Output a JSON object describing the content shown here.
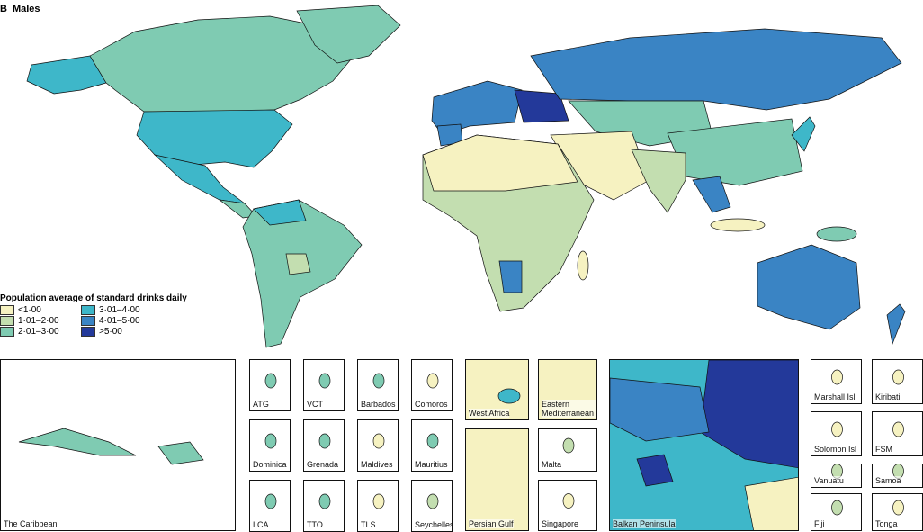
{
  "header": {
    "label": "B",
    "title": "Males"
  },
  "legend": {
    "title": "Population average of standard drinks daily",
    "items": [
      {
        "label": "<1·00",
        "color": "#f6f2c1"
      },
      {
        "label": "1·01–2·00",
        "color": "#c3deb0"
      },
      {
        "label": "2·01–3·00",
        "color": "#7fcbb2"
      },
      {
        "label": "3·01–4·00",
        "color": "#3eb7c9"
      },
      {
        "label": "4·01–5·00",
        "color": "#3a84c4"
      },
      {
        "label": ">5·00",
        "color": "#23399a"
      }
    ]
  },
  "insets": [
    {
      "label": "The Caribbean"
    },
    {
      "label": "ATG"
    },
    {
      "label": "VCT"
    },
    {
      "label": "Barbados"
    },
    {
      "label": "Comoros"
    },
    {
      "label": "Dominica"
    },
    {
      "label": "Grenada"
    },
    {
      "label": "Maldives"
    },
    {
      "label": "Mauritius"
    },
    {
      "label": "LCA"
    },
    {
      "label": "TTO"
    },
    {
      "label": "TLS"
    },
    {
      "label": "Seychelles"
    },
    {
      "label": "West Africa"
    },
    {
      "label": "Eastern Mediterranean"
    },
    {
      "label": "Persian Gulf"
    },
    {
      "label": "Malta"
    },
    {
      "label": "Singapore"
    },
    {
      "label": "Balkan Peninsula"
    },
    {
      "label": "Marshall Isl"
    },
    {
      "label": "Kiribati"
    },
    {
      "label": "Solomon Isl"
    },
    {
      "label": "FSM"
    },
    {
      "label": "Vanuatu"
    },
    {
      "label": "Samoa"
    },
    {
      "label": "Fiji"
    },
    {
      "label": "Tonga"
    }
  ]
}
